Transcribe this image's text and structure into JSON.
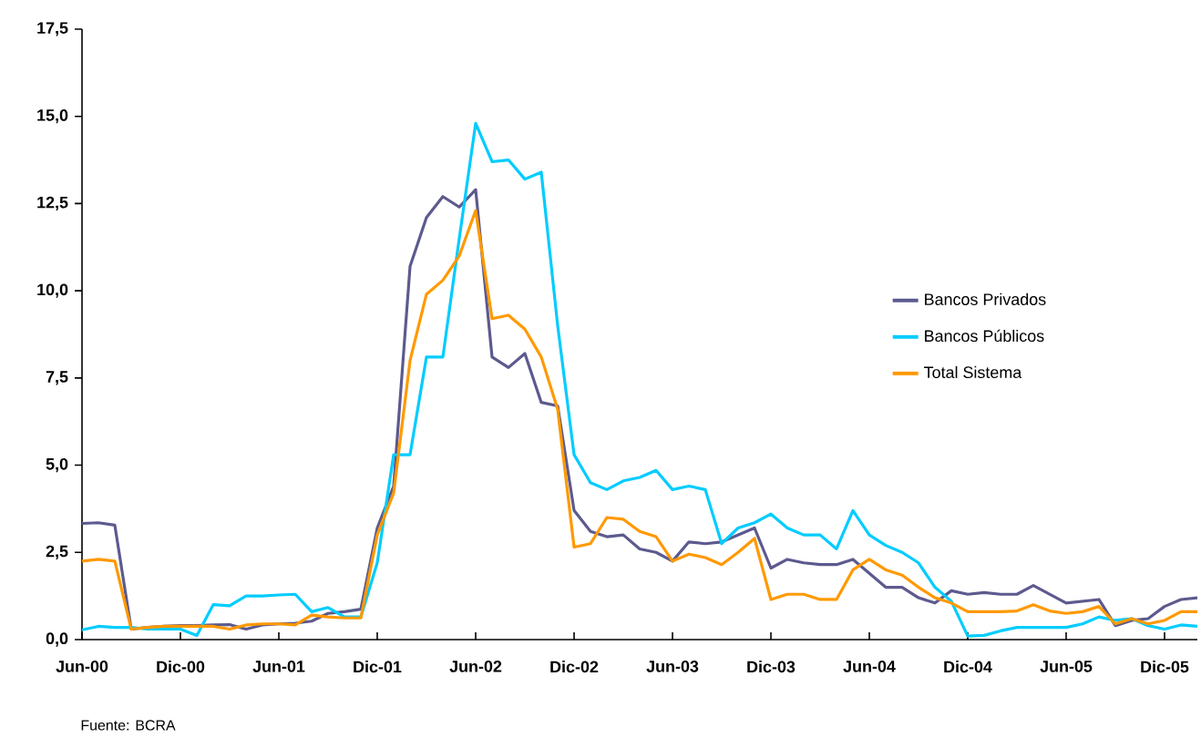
{
  "chart_data": {
    "type": "line",
    "x": [
      "2000-06",
      "2000-07",
      "2000-08",
      "2000-09",
      "2000-10",
      "2000-11",
      "2000-12",
      "2001-01",
      "2001-02",
      "2001-03",
      "2001-04",
      "2001-05",
      "2001-06",
      "2001-07",
      "2001-08",
      "2001-09",
      "2001-10",
      "2001-11",
      "2001-12",
      "2002-01",
      "2002-02",
      "2002-03",
      "2002-04",
      "2002-05",
      "2002-06",
      "2002-07",
      "2002-08",
      "2002-09",
      "2002-10",
      "2002-11",
      "2002-12",
      "2003-01",
      "2003-02",
      "2003-03",
      "2003-04",
      "2003-05",
      "2003-06",
      "2003-07",
      "2003-08",
      "2003-09",
      "2003-10",
      "2003-11",
      "2003-12",
      "2004-01",
      "2004-02",
      "2004-03",
      "2004-04",
      "2004-05",
      "2004-06",
      "2004-07",
      "2004-08",
      "2004-09",
      "2004-10",
      "2004-11",
      "2004-12",
      "2005-01",
      "2005-02",
      "2005-03",
      "2005-04",
      "2005-05",
      "2005-06",
      "2005-07",
      "2005-08",
      "2005-09",
      "2005-10",
      "2005-11",
      "2005-12",
      "2006-01",
      "2006-02"
    ],
    "series": [
      {
        "name": "Bancos Privados",
        "color": "#5c5a8e",
        "values": [
          3.33,
          3.35,
          3.28,
          0.3,
          0.35,
          0.38,
          0.4,
          0.4,
          0.42,
          0.43,
          0.3,
          0.42,
          0.45,
          0.47,
          0.53,
          0.75,
          0.8,
          0.87,
          3.2,
          4.4,
          10.7,
          12.1,
          12.7,
          12.4,
          12.9,
          8.1,
          7.8,
          8.2,
          6.8,
          6.7,
          3.7,
          3.1,
          2.95,
          3.0,
          2.6,
          2.5,
          2.25,
          2.8,
          2.75,
          2.8,
          3.0,
          3.2,
          2.05,
          2.3,
          2.2,
          2.15,
          2.15,
          2.3,
          1.9,
          1.5,
          1.5,
          1.2,
          1.05,
          1.4,
          1.3,
          1.35,
          1.3,
          1.3,
          1.55,
          1.3,
          1.05,
          1.1,
          1.15,
          0.4,
          0.55,
          0.6,
          0.95,
          1.15,
          1.2
        ]
      },
      {
        "name": "Bancos Públicos",
        "color": "#00ccff",
        "values": [
          0.28,
          0.38,
          0.35,
          0.35,
          0.3,
          0.3,
          0.3,
          0.12,
          1.0,
          0.97,
          1.25,
          1.25,
          1.28,
          1.3,
          0.8,
          0.92,
          0.65,
          0.65,
          2.2,
          5.3,
          5.3,
          8.1,
          8.1,
          11.5,
          14.8,
          13.7,
          13.75,
          13.2,
          13.4,
          9.0,
          5.3,
          4.5,
          4.3,
          4.55,
          4.65,
          4.85,
          4.3,
          4.4,
          4.3,
          2.75,
          3.2,
          3.35,
          3.6,
          3.2,
          3.0,
          3.0,
          2.6,
          3.7,
          3.0,
          2.7,
          2.5,
          2.2,
          1.5,
          1.1,
          0.1,
          0.12,
          0.25,
          0.35,
          0.35,
          0.35,
          0.35,
          0.45,
          0.65,
          0.55,
          0.6,
          0.4,
          0.3,
          0.42,
          0.38
        ]
      },
      {
        "name": "Total Sistema",
        "color": "#ff9900",
        "values": [
          2.25,
          2.3,
          2.25,
          0.3,
          0.35,
          0.38,
          0.38,
          0.38,
          0.38,
          0.3,
          0.42,
          0.45,
          0.45,
          0.42,
          0.7,
          0.65,
          0.62,
          0.62,
          3.0,
          4.2,
          8.0,
          9.9,
          10.3,
          11.0,
          12.3,
          9.2,
          9.3,
          8.9,
          8.1,
          6.6,
          2.65,
          2.75,
          3.5,
          3.45,
          3.1,
          2.95,
          2.25,
          2.45,
          2.35,
          2.15,
          2.5,
          2.9,
          1.15,
          1.3,
          1.3,
          1.15,
          1.15,
          2.0,
          2.3,
          2.0,
          1.85,
          1.5,
          1.2,
          1.05,
          0.8,
          0.8,
          0.8,
          0.82,
          1.0,
          0.82,
          0.75,
          0.8,
          0.95,
          0.45,
          0.6,
          0.45,
          0.55,
          0.8,
          0.8
        ]
      }
    ],
    "xlim": [
      "2000-06",
      "2006-02"
    ],
    "xticks": [
      {
        "value": "2000-06",
        "label": "Jun-00"
      },
      {
        "value": "2000-12",
        "label": "Dic-00"
      },
      {
        "value": "2001-06",
        "label": "Jun-01"
      },
      {
        "value": "2001-12",
        "label": "Dic-01"
      },
      {
        "value": "2002-06",
        "label": "Jun-02"
      },
      {
        "value": "2002-12",
        "label": "Dic-02"
      },
      {
        "value": "2003-06",
        "label": "Jun-03"
      },
      {
        "value": "2003-12",
        "label": "Dic-03"
      },
      {
        "value": "2004-06",
        "label": "Jun-04"
      },
      {
        "value": "2004-12",
        "label": "Dic-04"
      },
      {
        "value": "2005-06",
        "label": "Jun-05"
      },
      {
        "value": "2005-12",
        "label": "Dic-05"
      }
    ],
    "ylim": [
      0,
      17.5
    ],
    "yticks": [
      {
        "value": 0,
        "label": "0,0"
      },
      {
        "value": 2.5,
        "label": "2,5"
      },
      {
        "value": 5,
        "label": "5,0"
      },
      {
        "value": 7.5,
        "label": "7,5"
      },
      {
        "value": 10,
        "label": "10,0"
      },
      {
        "value": 12.5,
        "label": "12,5"
      },
      {
        "value": 15,
        "label": "15,0"
      },
      {
        "value": 17.5,
        "label": "17,5"
      }
    ],
    "grid": false,
    "legend": "right",
    "line_style": "solid",
    "annotations": [
      "Fuente: BCRA"
    ]
  }
}
